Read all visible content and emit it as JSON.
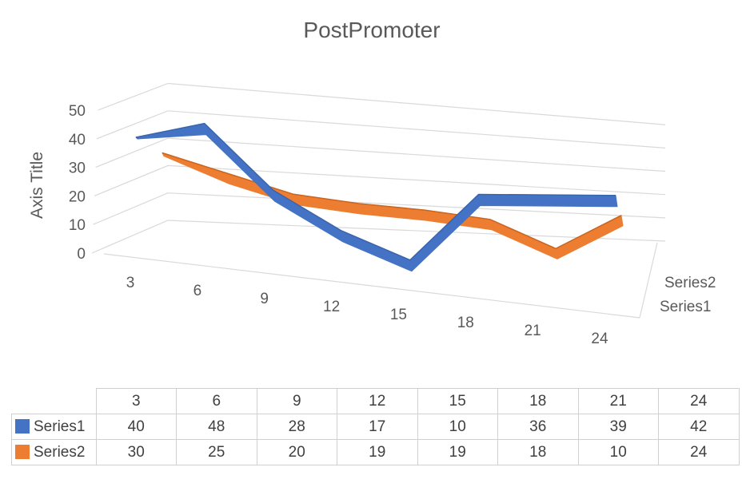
{
  "chart_data": {
    "type": "line",
    "title": "PostPromoter",
    "ylabel": "Axis Title",
    "xlabel": "",
    "categories": [
      "3",
      "6",
      "9",
      "12",
      "15",
      "18",
      "21",
      "24"
    ],
    "ylim": [
      0,
      50
    ],
    "yticks": [
      "0",
      "10",
      "20",
      "30",
      "40",
      "50"
    ],
    "depth_labels": [
      "Series2",
      "Series1"
    ],
    "grid": true,
    "series": [
      {
        "name": "Series1",
        "values": [
          40,
          48,
          28,
          17,
          10,
          36,
          39,
          42
        ],
        "color": "#4472c4"
      },
      {
        "name": "Series2",
        "values": [
          30,
          25,
          20,
          19,
          19,
          18,
          10,
          24
        ],
        "color": "#ed7d31"
      }
    ],
    "data_table": true
  }
}
